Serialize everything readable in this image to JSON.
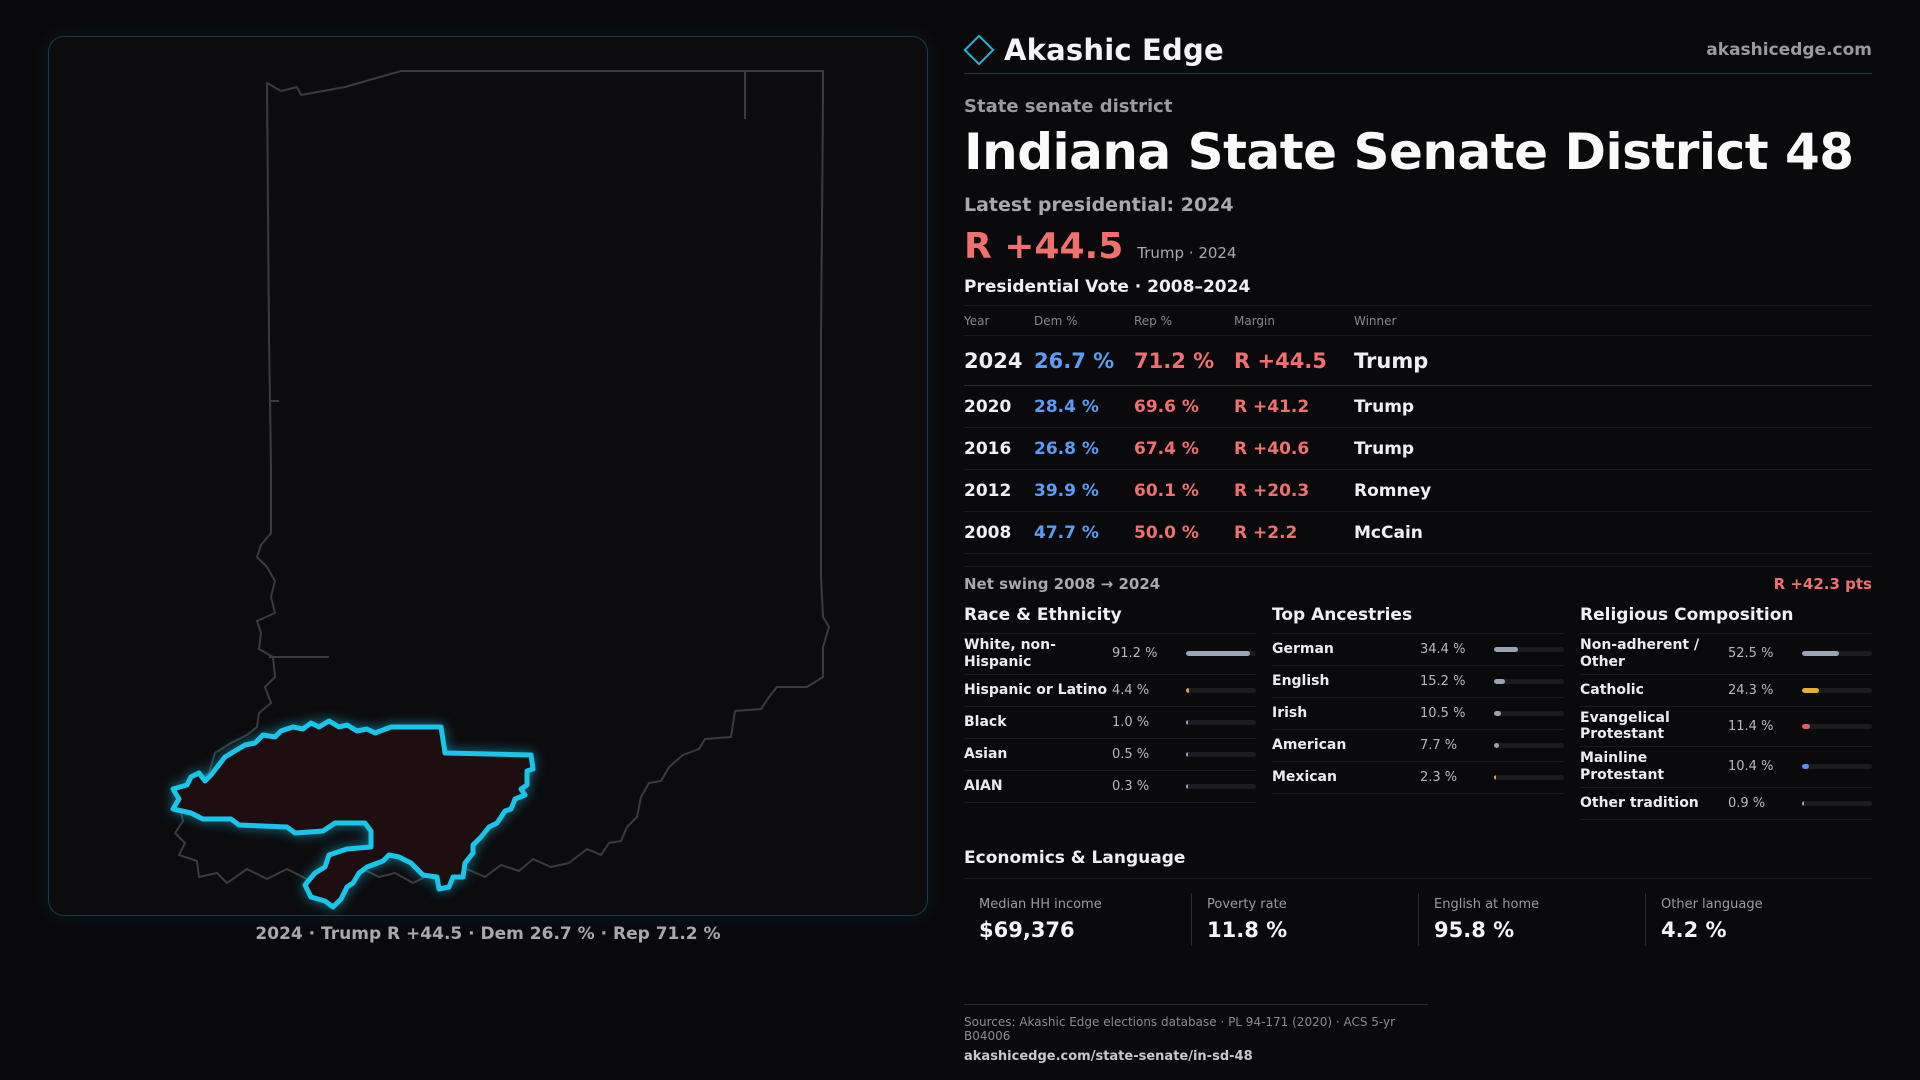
{
  "map": {
    "caption": "2024 · Trump R +44.5 · Dem 26.7 % · Rep 71.2 %",
    "colors": {
      "district_stroke": "#19c5e8",
      "district_fill": "#1e0e10",
      "state_outline": "#3a3a40"
    }
  },
  "header": {
    "brand": "Akashic Edge",
    "url": "akashicedge.com"
  },
  "kicker": "State senate district",
  "title": "Indiana State Senate District 48",
  "latest_label": "Latest presidential: 2024",
  "latest_margin": "R +44.5",
  "latest_margin_sub": "Trump · 2024",
  "presidential": {
    "title": "Presidential Vote · 2008–2024",
    "columns": [
      "Year",
      "Dem %",
      "Rep %",
      "Margin",
      "Winner"
    ],
    "rows": [
      {
        "year": "2024",
        "dem": "26.7 %",
        "rep": "71.2 %",
        "margin": "R +44.5",
        "winner": "Trump"
      },
      {
        "year": "2020",
        "dem": "28.4 %",
        "rep": "69.6 %",
        "margin": "R +41.2",
        "winner": "Trump"
      },
      {
        "year": "2016",
        "dem": "26.8 %",
        "rep": "67.4 %",
        "margin": "R +40.6",
        "winner": "Trump"
      },
      {
        "year": "2012",
        "dem": "39.9 %",
        "rep": "60.1 %",
        "margin": "R +20.3",
        "winner": "Romney"
      },
      {
        "year": "2008",
        "dem": "47.7 %",
        "rep": "50.0 %",
        "margin": "R +2.2",
        "winner": "McCain"
      }
    ],
    "swing_label": "Net swing 2008 → 2024",
    "swing_value": "R +42.3 pts"
  },
  "race": {
    "title": "Race & Ethnicity",
    "items": [
      {
        "label": "White, non-Hispanic",
        "value": "91.2 %",
        "pct": 91.2,
        "color": "#9aa4b4"
      },
      {
        "label": "Hispanic or Latino",
        "value": "4.4 %",
        "pct": 4.4,
        "color": "#e0a040"
      },
      {
        "label": "Black",
        "value": "1.0 %",
        "pct": 1.0,
        "color": "#9aa4b4"
      },
      {
        "label": "Asian",
        "value": "0.5 %",
        "pct": 0.5,
        "color": "#9aa4b4"
      },
      {
        "label": "AIAN",
        "value": "0.3 %",
        "pct": 0.3,
        "color": "#9aa4b4"
      }
    ]
  },
  "ancestry": {
    "title": "Top Ancestries",
    "items": [
      {
        "label": "German",
        "value": "34.4 %",
        "pct": 34.4,
        "color": "#9aa4b4"
      },
      {
        "label": "English",
        "value": "15.2 %",
        "pct": 15.2,
        "color": "#9aa4b4"
      },
      {
        "label": "Irish",
        "value": "10.5 %",
        "pct": 10.5,
        "color": "#9aa4b4"
      },
      {
        "label": "American",
        "value": "7.7 %",
        "pct": 7.7,
        "color": "#9aa4b4"
      },
      {
        "label": "Mexican",
        "value": "2.3 %",
        "pct": 2.3,
        "color": "#e0a040"
      }
    ]
  },
  "religion": {
    "title": "Religious Composition",
    "items": [
      {
        "label": "Non-adherent / Other",
        "value": "52.5 %",
        "pct": 52.5,
        "color": "#9aa4b4"
      },
      {
        "label": "Catholic",
        "value": "24.3 %",
        "pct": 24.3,
        "color": "#e8b030"
      },
      {
        "label": "Evangelical Protestant",
        "value": "11.4 %",
        "pct": 11.4,
        "color": "#e06060"
      },
      {
        "label": "Mainline Protestant",
        "value": "10.4 %",
        "pct": 10.4,
        "color": "#5b8ff0"
      },
      {
        "label": "Other tradition",
        "value": "0.9 %",
        "pct": 0.9,
        "color": "#9aa4b4"
      }
    ]
  },
  "economics": {
    "title": "Economics & Language",
    "items": [
      {
        "label": "Median HH income",
        "value": "$69,376"
      },
      {
        "label": "Poverty rate",
        "value": "11.8 %"
      },
      {
        "label": "English at home",
        "value": "95.8 %"
      },
      {
        "label": "Other language",
        "value": "4.2 %"
      }
    ]
  },
  "sources": {
    "line": "Sources: Akashic Edge elections database · PL 94-171 (2020) · ACS 5-yr B04006",
    "url": "akashicedge.com/state-senate/in-sd-48"
  }
}
